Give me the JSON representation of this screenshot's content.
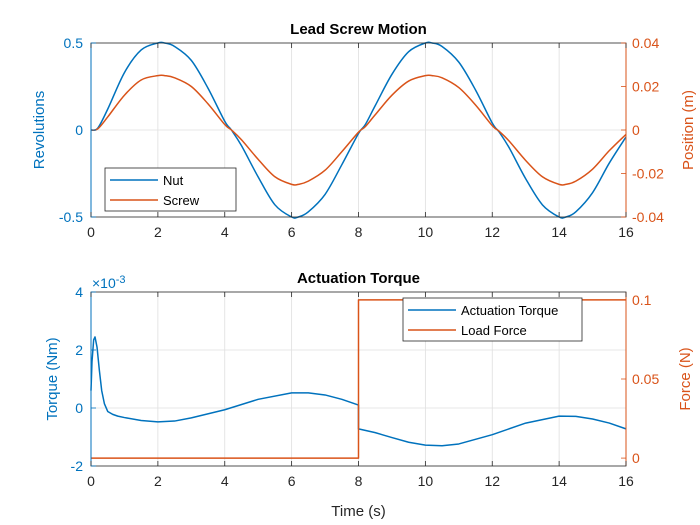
{
  "colors": {
    "left": "#0072BD",
    "right": "#D95319",
    "axis": "#262626",
    "grid": "#dfdfdf"
  },
  "chart_data": [
    {
      "type": "line",
      "title": "Lead Screw Motion",
      "xlabel": "",
      "ylabel_left": "Revolutions",
      "ylabel_right": "Position (m)",
      "xlim": [
        0,
        16
      ],
      "ylim_left": [
        -0.5,
        0.5
      ],
      "ylim_right": [
        -0.04,
        0.04
      ],
      "xticks": [
        0,
        2,
        4,
        6,
        8,
        10,
        12,
        14,
        16
      ],
      "yticks_left": [
        -0.5,
        0,
        0.5
      ],
      "yticks_right": [
        -0.04,
        -0.02,
        0,
        0.02,
        0.04
      ],
      "xtick_labels": [
        "0",
        "2",
        "4",
        "6",
        "8",
        "10",
        "12",
        "14",
        "16"
      ],
      "ytick_labels_left": [
        "-0.5",
        "0",
        "0.5"
      ],
      "ytick_labels_right": [
        "-0.04",
        "-0.02",
        "0",
        "0.02",
        "0.04"
      ],
      "grid": true,
      "legend": "bottom-left",
      "series": [
        {
          "name": "Nut",
          "axis": "left",
          "x": [
            0,
            0.2,
            0.5,
            1,
            1.5,
            2,
            2.2,
            2.5,
            3,
            3.5,
            4,
            4.2,
            4.5,
            5,
            5.5,
            6,
            6.2,
            6.5,
            7,
            7.5,
            8,
            8.2,
            8.5,
            9,
            9.5,
            10,
            10.2,
            10.5,
            11,
            11.5,
            12,
            12.2,
            12.5,
            13,
            13.5,
            14,
            14.2,
            14.5,
            15,
            15.5,
            16
          ],
          "y": [
            0,
            0.01,
            0.12,
            0.33,
            0.46,
            0.5,
            0.5,
            0.48,
            0.4,
            0.24,
            0.05,
            0,
            -0.09,
            -0.27,
            -0.43,
            -0.5,
            -0.5,
            -0.47,
            -0.37,
            -0.2,
            -0.02,
            0.03,
            0.14,
            0.32,
            0.45,
            0.5,
            0.5,
            0.48,
            0.39,
            0.23,
            0.04,
            -0.01,
            -0.1,
            -0.28,
            -0.43,
            -0.5,
            -0.5,
            -0.47,
            -0.36,
            -0.19,
            -0.04
          ]
        },
        {
          "name": "Screw",
          "axis": "right",
          "x": [
            0,
            0.2,
            0.5,
            1,
            1.5,
            2,
            2.2,
            2.5,
            3,
            3.5,
            4,
            4.2,
            4.5,
            5,
            5.5,
            6,
            6.2,
            6.5,
            7,
            7.5,
            8,
            8.2,
            8.5,
            9,
            9.5,
            10,
            10.2,
            10.5,
            11,
            11.5,
            12,
            12.2,
            12.5,
            13,
            13.5,
            14,
            14.2,
            14.5,
            15,
            15.5,
            16
          ],
          "y": [
            0,
            0.0005,
            0.006,
            0.016,
            0.023,
            0.025,
            0.025,
            0.024,
            0.02,
            0.012,
            0.0025,
            0,
            -0.0045,
            -0.0135,
            -0.0215,
            -0.025,
            -0.025,
            -0.0235,
            -0.0185,
            -0.01,
            -0.001,
            0.0015,
            0.007,
            0.016,
            0.0225,
            0.025,
            0.025,
            0.024,
            0.0195,
            0.0115,
            0.002,
            -0.0005,
            -0.005,
            -0.014,
            -0.0215,
            -0.025,
            -0.025,
            -0.0235,
            -0.018,
            -0.0095,
            -0.002
          ]
        }
      ]
    },
    {
      "type": "line",
      "title": "Actuation Torque",
      "xlabel": "Time (s)",
      "ylabel_left": "Torque (Nm)",
      "ylabel_right": "Force (N)",
      "exponent_label": "×10",
      "exponent_power": "-3",
      "xlim": [
        0,
        16
      ],
      "ylim_left": [
        -2,
        4
      ],
      "ylim_right": [
        -0.005,
        0.105
      ],
      "xticks": [
        0,
        2,
        4,
        6,
        8,
        10,
        12,
        14,
        16
      ],
      "yticks_left": [
        -2,
        0,
        2,
        4
      ],
      "yticks_right": [
        0,
        0.05,
        0.1
      ],
      "xtick_labels": [
        "0",
        "2",
        "4",
        "6",
        "8",
        "10",
        "12",
        "14",
        "16"
      ],
      "ytick_labels_left": [
        "-2",
        "0",
        "2",
        "4"
      ],
      "ytick_labels_right": [
        "0",
        "0.05",
        "0.1"
      ],
      "grid": true,
      "legend": "top-right",
      "series": [
        {
          "name": "Actuation Torque",
          "axis": "left",
          "unit_scale": "1e-3",
          "x": [
            0,
            0.03,
            0.08,
            0.12,
            0.18,
            0.25,
            0.32,
            0.4,
            0.5,
            0.65,
            0.8,
            1,
            1.5,
            2,
            2.5,
            3,
            4,
            5,
            6,
            6.5,
            7,
            7.5,
            8,
            8.0001,
            8.5,
            9,
            9.5,
            10,
            10.5,
            11,
            12,
            13,
            14,
            14.5,
            15,
            15.5,
            16
          ],
          "y": [
            0.6,
            1.6,
            2.35,
            2.45,
            2.1,
            1.3,
            0.6,
            0.15,
            -0.12,
            -0.22,
            -0.28,
            -0.33,
            -0.43,
            -0.48,
            -0.45,
            -0.34,
            -0.06,
            0.3,
            0.52,
            0.52,
            0.45,
            0.3,
            0.1,
            -0.72,
            -0.85,
            -1.02,
            -1.18,
            -1.28,
            -1.3,
            -1.24,
            -0.92,
            -0.52,
            -0.28,
            -0.29,
            -0.38,
            -0.52,
            -0.72
          ]
        },
        {
          "name": "Load Force",
          "axis": "right",
          "x": [
            0,
            8,
            8.0001,
            16
          ],
          "y": [
            0,
            0,
            0.1,
            0.1
          ]
        }
      ]
    }
  ]
}
